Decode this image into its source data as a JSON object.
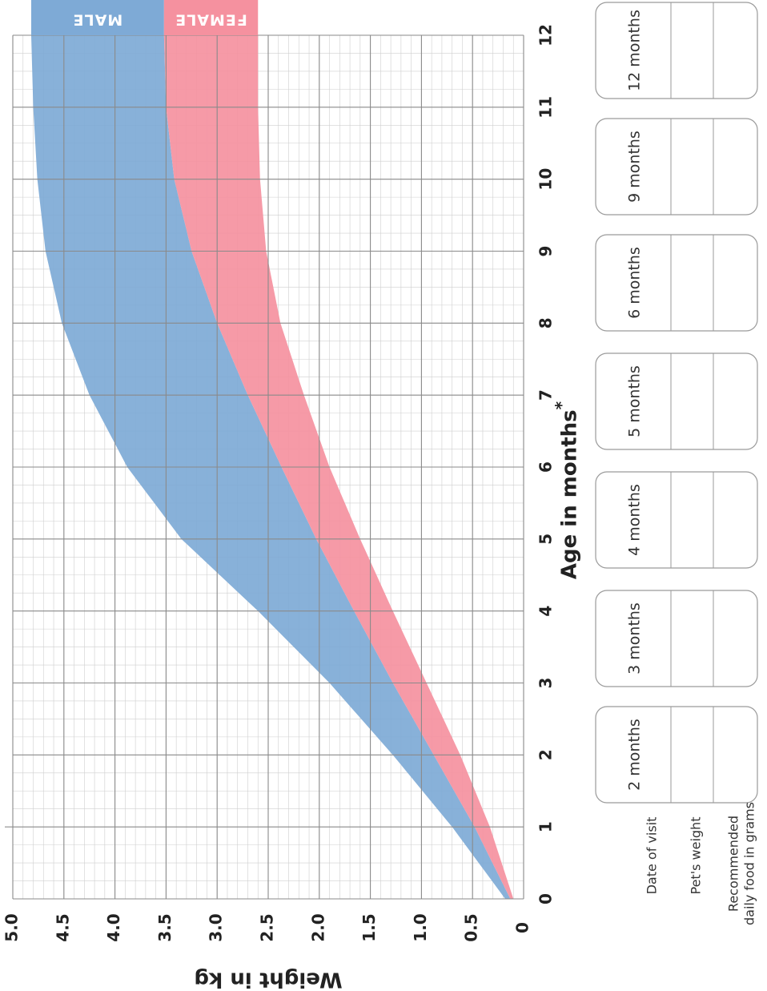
{
  "chart_data": {
    "type": "area",
    "xlabel": "Age in months",
    "xlabel_suffix": "*",
    "ylabel": "Weight in kg",
    "xlim": [
      0,
      12
    ],
    "ylim": [
      0,
      5.0
    ],
    "x_ticks": [
      "0",
      "1",
      "2",
      "3",
      "4",
      "5",
      "6",
      "7",
      "8",
      "9",
      "10",
      "11",
      "12"
    ],
    "y_ticks": [
      "0",
      "0.5",
      "1.0",
      "1.5",
      "2.0",
      "2.5",
      "3.0",
      "3.5",
      "4.0",
      "4.5",
      "5.0"
    ],
    "grid": true,
    "x": [
      0,
      1,
      2,
      3,
      4,
      5,
      6,
      7,
      8,
      9,
      10,
      11,
      12
    ],
    "series": [
      {
        "name": "MALE",
        "color": "#7eaad6",
        "lower": [
          0.13,
          0.48,
          0.88,
          1.28,
          1.66,
          2.03,
          2.37,
          2.7,
          3.0,
          3.25,
          3.42,
          3.5,
          3.52
        ],
        "upper": [
          0.18,
          0.7,
          1.28,
          1.9,
          2.6,
          3.35,
          3.88,
          4.25,
          4.52,
          4.68,
          4.76,
          4.8,
          4.82
        ]
      },
      {
        "name": "FEMALE",
        "color": "#f5919f",
        "lower": [
          0.1,
          0.33,
          0.62,
          0.95,
          1.28,
          1.6,
          1.9,
          2.15,
          2.38,
          2.52,
          2.58,
          2.6,
          2.6
        ],
        "upper": [
          0.13,
          0.48,
          0.88,
          1.28,
          1.66,
          2.03,
          2.37,
          2.7,
          3.0,
          3.25,
          3.42,
          3.5,
          3.52
        ]
      }
    ]
  },
  "record_table": {
    "row_labels": [
      "Date of visit",
      "Pet's weight",
      "Recommended",
      "daily food in grams"
    ],
    "columns": [
      "2 months",
      "3 months",
      "4 months",
      "5 months",
      "6 months",
      "9 months",
      "12 months"
    ]
  }
}
